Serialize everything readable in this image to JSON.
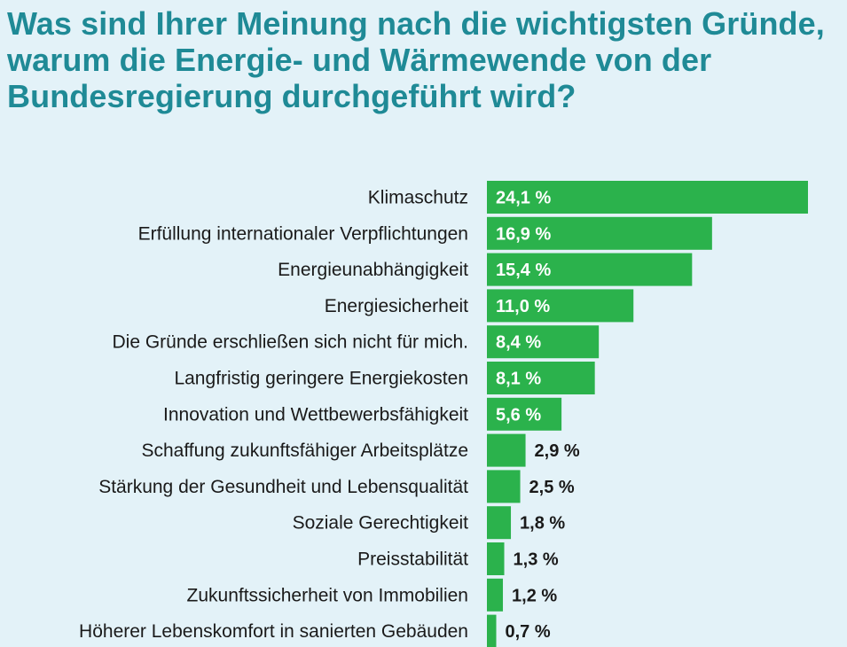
{
  "title": "Was sind Ihrer Meinung nach die wichtigsten Gründe, warum die Energie- und Wärmewende von der Bundesregierung durchgeführt wird?",
  "colors": {
    "background": "#e3f2f8",
    "title": "#1f8a96",
    "bar": "#2bb24c"
  },
  "chart_data": {
    "type": "bar",
    "orientation": "horizontal",
    "unit": "%",
    "categories": [
      "Klimaschutz",
      "Erfüllung internationaler Verpflichtungen",
      "Energieunabhängigkeit",
      "Energiesicherheit",
      "Die Gründe erschließen sich nicht für mich.",
      "Langfristig geringere Energiekosten",
      "Innovation und Wettbewerbsfähigkeit",
      "Schaffung zukunftsfähiger Arbeitsplätze",
      "Stärkung der Gesundheit und Lebensqualität",
      "Soziale Gerechtigkeit",
      "Preisstabilität",
      "Zukunftssicherheit von Immobilien",
      "Höherer Lebenskomfort in sanierten Gebäuden"
    ],
    "values": [
      24.1,
      16.9,
      15.4,
      11.0,
      8.4,
      8.1,
      5.6,
      2.9,
      2.5,
      1.8,
      1.3,
      1.2,
      0.7
    ],
    "value_labels": [
      "24,1 %",
      "16,9 %",
      "15,4 %",
      "11,0 %",
      "8,4 %",
      "8,1 %",
      "5,6 %",
      "2,9 %",
      "2,5 %",
      "1,8 %",
      "1,3 %",
      "1,2 %",
      "0,7 %"
    ],
    "xlim": [
      0,
      24.1
    ],
    "grid": false,
    "legend": "none"
  }
}
